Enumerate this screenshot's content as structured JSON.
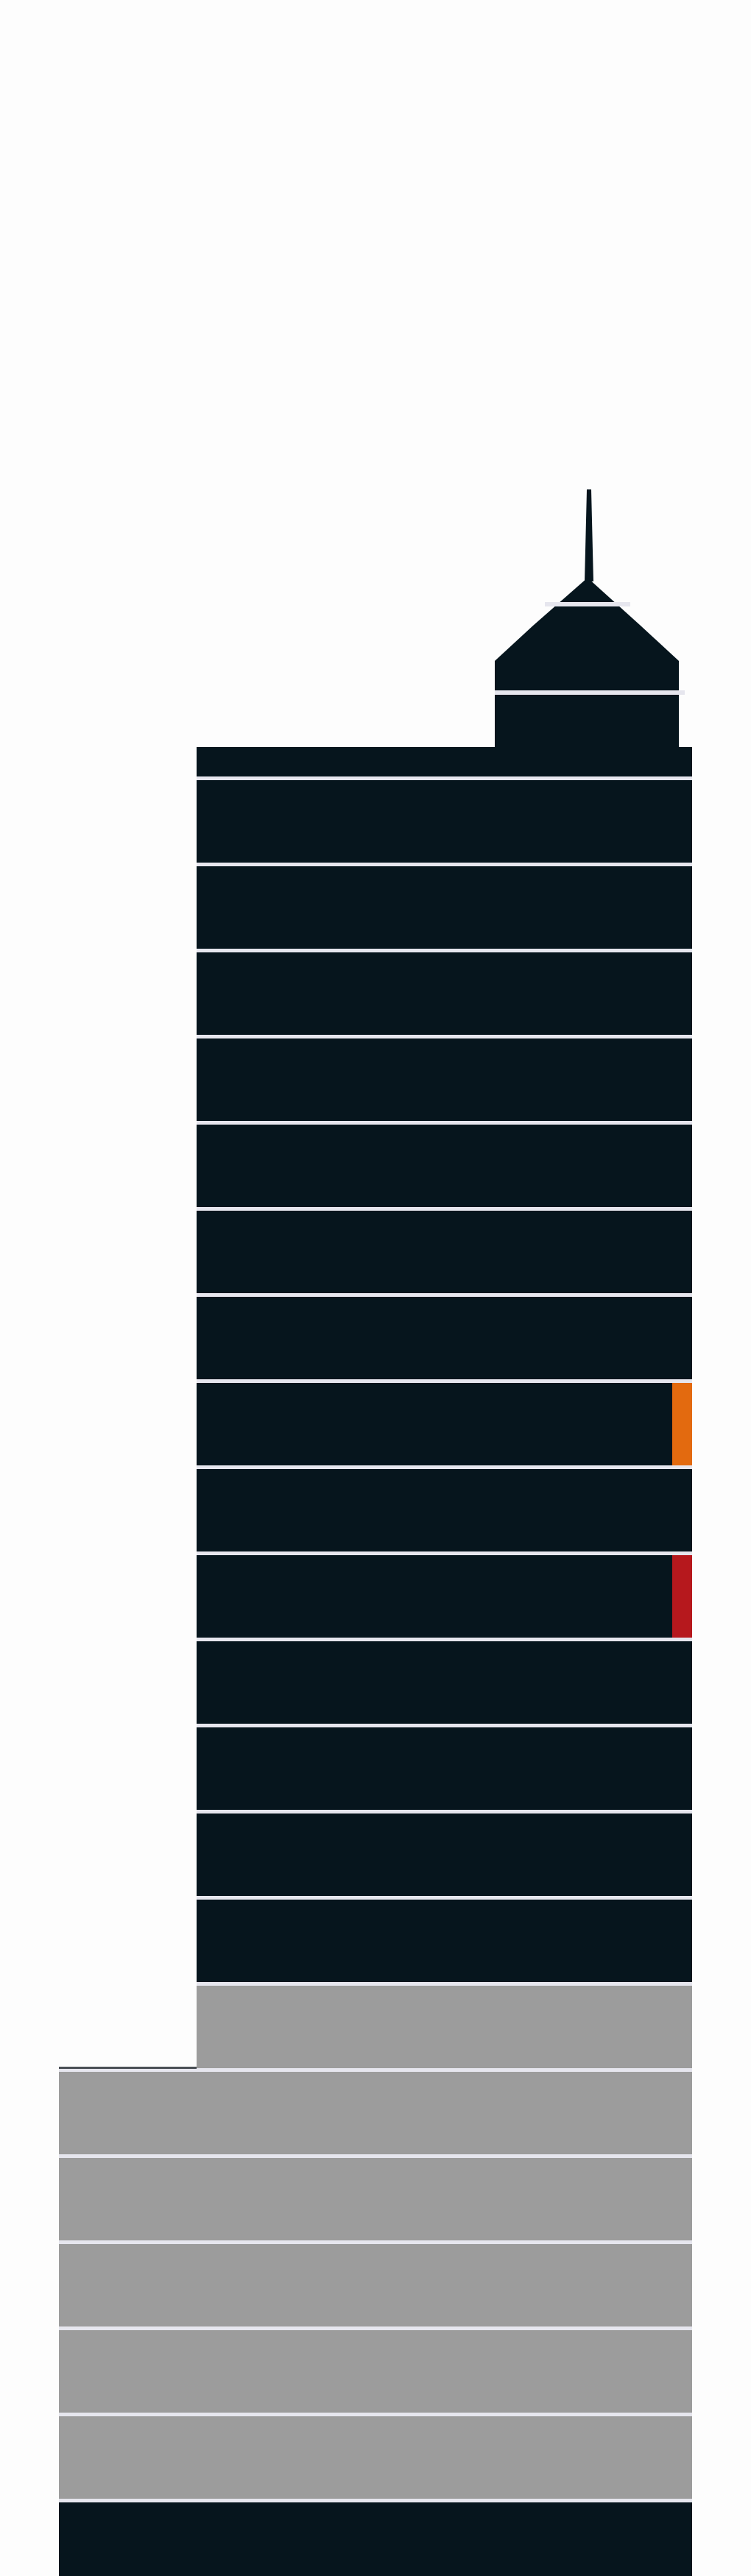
{
  "diagram": {
    "colors": {
      "background": "#fdfdfd",
      "dark_floor": "#06151d",
      "grey_floor": "#9c9c9c",
      "separator": "#e6e6ee",
      "marker_orange": "#e36a0f",
      "marker_red": "#b6181d"
    },
    "floors_top_to_bottom": [
      {
        "kind": "dark"
      },
      {
        "kind": "dark"
      },
      {
        "kind": "dark"
      },
      {
        "kind": "dark"
      },
      {
        "kind": "dark"
      },
      {
        "kind": "dark"
      },
      {
        "kind": "dark"
      },
      {
        "kind": "dark",
        "marker": "orange"
      },
      {
        "kind": "dark"
      },
      {
        "kind": "dark",
        "marker": "red"
      },
      {
        "kind": "dark"
      },
      {
        "kind": "dark"
      },
      {
        "kind": "dark"
      },
      {
        "kind": "dark"
      },
      {
        "kind": "grey"
      },
      {
        "kind": "grey"
      },
      {
        "kind": "grey"
      },
      {
        "kind": "grey"
      },
      {
        "kind": "grey"
      },
      {
        "kind": "grey"
      },
      {
        "kind": "dark"
      }
    ]
  }
}
